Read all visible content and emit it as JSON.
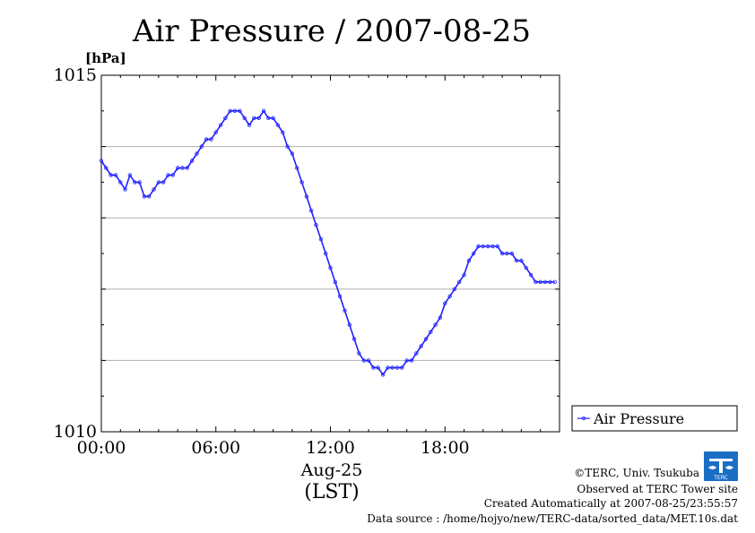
{
  "chart_data": {
    "type": "line",
    "title": "Air Pressure / 2007-08-25",
    "yunit": "[hPa]",
    "ylim": [
      1010,
      1015
    ],
    "y_ticks": [
      1010,
      1011,
      1012,
      1013,
      1014,
      1015
    ],
    "y_tick_labels": [
      {
        "value": 1015,
        "label": "1015"
      },
      {
        "value": 1010,
        "label": "1010"
      }
    ],
    "xlim": [
      0,
      24
    ],
    "x_ticks": [
      {
        "hour": 0,
        "label": "00:00"
      },
      {
        "hour": 6,
        "label": "06:00"
      },
      {
        "hour": 12,
        "label": "12:00"
      },
      {
        "hour": 18,
        "label": "18:00"
      }
    ],
    "x_date_label": "Aug-25",
    "x_axis_label": "(LST)",
    "grid": "horizontal",
    "legend": {
      "position": "right",
      "entry": "Air Pressure"
    },
    "series_color": "#2020ff",
    "series": [
      {
        "name": "Air Pressure",
        "x": [
          0.0,
          0.25,
          0.5,
          0.75,
          1.0,
          1.25,
          1.5,
          1.75,
          2.0,
          2.25,
          2.5,
          2.75,
          3.0,
          3.25,
          3.5,
          3.75,
          4.0,
          4.25,
          4.5,
          4.75,
          5.0,
          5.25,
          5.5,
          5.75,
          6.0,
          6.25,
          6.5,
          6.75,
          7.0,
          7.25,
          7.5,
          7.75,
          8.0,
          8.25,
          8.5,
          8.75,
          9.0,
          9.25,
          9.5,
          9.75,
          10.0,
          10.25,
          10.5,
          10.75,
          11.0,
          11.25,
          11.5,
          11.75,
          12.0,
          12.25,
          12.5,
          12.75,
          13.0,
          13.25,
          13.5,
          13.75,
          14.0,
          14.25,
          14.5,
          14.75,
          15.0,
          15.25,
          15.5,
          15.75,
          16.0,
          16.25,
          16.5,
          16.75,
          17.0,
          17.25,
          17.5,
          17.75,
          18.0,
          18.25,
          18.5,
          18.75,
          19.0,
          19.25,
          19.5,
          19.75,
          20.0,
          20.25,
          20.5,
          20.75,
          21.0,
          21.25,
          21.5,
          21.75,
          22.0,
          22.25,
          22.5,
          22.75,
          23.0,
          23.25,
          23.5,
          23.75
        ],
        "values": [
          1013.8,
          1013.7,
          1013.6,
          1013.6,
          1013.5,
          1013.4,
          1013.6,
          1013.5,
          1013.5,
          1013.3,
          1013.3,
          1013.4,
          1013.5,
          1013.5,
          1013.6,
          1013.6,
          1013.7,
          1013.7,
          1013.7,
          1013.8,
          1013.9,
          1014.0,
          1014.1,
          1014.1,
          1014.2,
          1014.3,
          1014.4,
          1014.5,
          1014.5,
          1014.5,
          1014.4,
          1014.3,
          1014.4,
          1014.4,
          1014.5,
          1014.4,
          1014.4,
          1014.3,
          1014.2,
          1014.0,
          1013.9,
          1013.7,
          1013.5,
          1013.3,
          1013.1,
          1012.9,
          1012.7,
          1012.5,
          1012.3,
          1012.1,
          1011.9,
          1011.7,
          1011.5,
          1011.3,
          1011.1,
          1011.0,
          1011.0,
          1010.9,
          1010.9,
          1010.8,
          1010.9,
          1010.9,
          1010.9,
          1010.9,
          1011.0,
          1011.0,
          1011.1,
          1011.2,
          1011.3,
          1011.4,
          1011.5,
          1011.6,
          1011.8,
          1011.9,
          1012.0,
          1012.1,
          1012.2,
          1012.4,
          1012.5,
          1012.6,
          1012.6,
          1012.6,
          1012.6,
          1012.6,
          1012.5,
          1012.5,
          1012.5,
          1012.4,
          1012.4,
          1012.3,
          1012.2,
          1012.1,
          1012.1,
          1012.1,
          1012.1,
          1012.1
        ]
      }
    ]
  },
  "footer": {
    "copyright": "©TERC, Univ. Tsukuba",
    "observed": "Observed at TERC Tower site",
    "created": "Created Automatically at 2007-08-25/23:55:57",
    "source": "Data source : /home/hojyo/new/TERC-data/sorted_data/MET.10s.dat"
  },
  "logo": {
    "name": "terc-logo-icon",
    "text": "TERC",
    "color": "#1a6fc4"
  }
}
